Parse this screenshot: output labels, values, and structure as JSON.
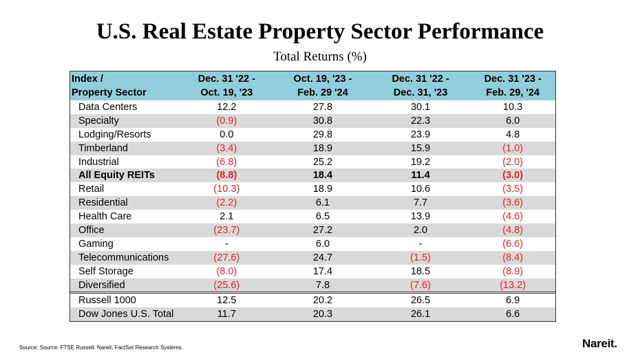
{
  "title": "U.S. Real Estate Property Sector Performance",
  "subtitle": "Total Returns (%)",
  "table": {
    "headers": [
      [
        "Index /",
        "Property Sector"
      ],
      [
        "Dec. 31 '22 -",
        "Oct. 19, '23"
      ],
      [
        "Oct. 19, '23 -",
        "Feb. 29 '24"
      ],
      [
        "Dec. 31 '22 -",
        "Dec. 31, '23"
      ],
      [
        "Dec. 31 '23 -",
        "Feb. 29, '24"
      ]
    ],
    "rows": [
      [
        "Data Centers",
        "12.2",
        "27.8",
        "30.1",
        "10.3"
      ],
      [
        "Specialty",
        "(0.9)",
        "30.8",
        "22.3",
        "6.0"
      ],
      [
        "Lodging/Resorts",
        "0.0",
        "29.8",
        "23.9",
        "4.8"
      ],
      [
        "Timberland",
        "(3.4)",
        "18.9",
        "15.9",
        "(1.0)"
      ],
      [
        "Industrial",
        "(6.8)",
        "25.2",
        "19.2",
        "(2.0)"
      ],
      [
        "All Equity REITs",
        "(8.8)",
        "18.4",
        "11.4",
        "(3.0)"
      ],
      [
        "Retail",
        "(10.3)",
        "18.9",
        "10.6",
        "(3.5)"
      ],
      [
        "Residential",
        "(2.2)",
        "6.1",
        "7.7",
        "(3.6)"
      ],
      [
        "Health Care",
        "2.1",
        "6.5",
        "13.9",
        "(4.6)"
      ],
      [
        "Office",
        "(23.7)",
        "27.2",
        "2.0",
        "(4.8)"
      ],
      [
        "Gaming",
        "-",
        "6.0",
        "-",
        "(6.6)"
      ],
      [
        "Telecommunications",
        "(27.6)",
        "24.7",
        "(1.5)",
        "(8.4)"
      ],
      [
        "Self Storage",
        "(8.0)",
        "17.4",
        "18.5",
        "(8.9)"
      ],
      [
        "Diversified",
        "(25.6)",
        "7.8",
        "(7.6)",
        "(13.2)"
      ]
    ],
    "benchmarks": [
      [
        "Russell 1000",
        "12.5",
        "20.2",
        "26.5",
        "6.9"
      ],
      [
        "Dow Jones U.S. Total",
        "11.7",
        "20.3",
        "26.1",
        "6.6"
      ]
    ],
    "header_color": "#92cddc",
    "stripe_color": "#d9d9d9",
    "negative_color": "#e0242b"
  },
  "source": "Source: Source: FTSE Russell, Nareit, FactSet Research Systems.",
  "logo": "Nareit."
}
